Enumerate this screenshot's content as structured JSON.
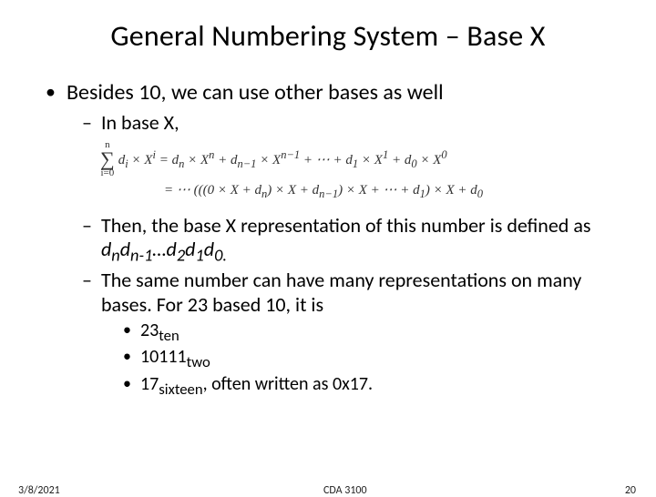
{
  "title": "General Numbering System – Base X",
  "bullets": {
    "main": "Besides 10, we can use other bases as well",
    "sub1": "In base X,",
    "sub2_a": "Then, the base X representation of this number is defined as ",
    "sub2_b_html": "d<sub>n</sub>d<sub>n-1</sub>…d<sub>2</sub>d<sub>1</sub>d<sub>0.</sub>",
    "sub3": "The same number can have many representations on many bases. For 23 based 10, it is",
    "rep1_html": "23<sub>ten</sub>",
    "rep2_html": "10111<sub>two</sub>",
    "rep3_prefix_html": "17<sub>sixteen</sub>",
    "rep3_suffix": ", often written as 0x17."
  },
  "formula": {
    "sigma_top": "n",
    "sigma_bottom": "i=0",
    "line1_html": "d<sub>i</sub> × X<sup>i</sup> = d<sub>n</sub> × X<sup>n</sup> + d<sub>n−1</sub> × X<sup>n−1</sup> + ⋯ + d<sub>1</sub> × X<sup>1</sup> + d<sub>0</sub> × X<sup>0</sup>",
    "line2_html": "= ⋯ (((0 × X + d<sub>n</sub>) × X + d<sub>n−1</sub>) × X + ⋯ + d<sub>1</sub>) × X + d<sub>0</sub>"
  },
  "footer": {
    "date": "3/8/2021",
    "course": "CDA 3100",
    "page": "20"
  },
  "style": {
    "bg": "#ffffff",
    "text": "#000000",
    "title_fontsize": 32,
    "body_fontsize": 24,
    "sub_fontsize": 22,
    "subsub_fontsize": 20,
    "footer_fontsize": 12,
    "font_family": "Calibri"
  }
}
